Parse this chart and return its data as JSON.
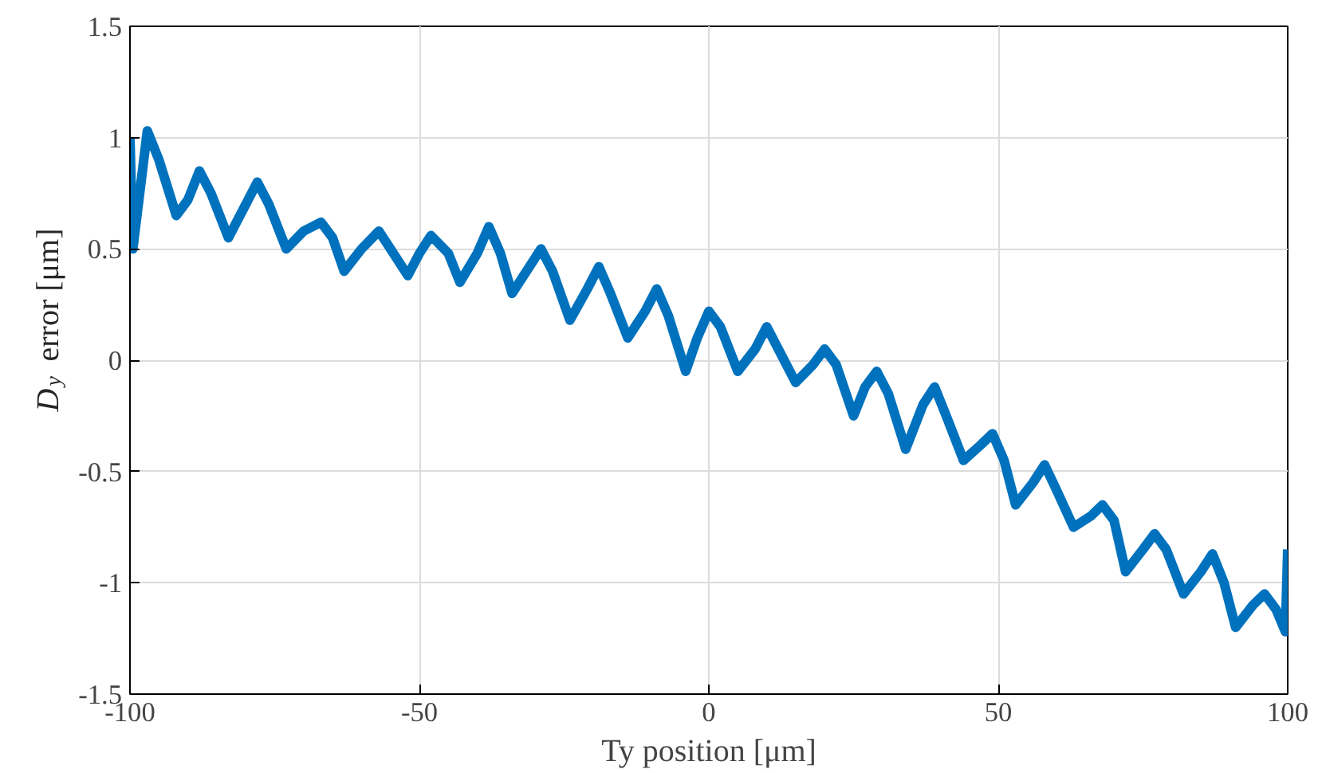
{
  "chart_data": {
    "type": "line",
    "xlabel": "Ty position [μm]",
    "ylabel": "D$_{y}$ error [μm]",
    "x": [
      -100,
      -99.5,
      -97,
      -95,
      -92,
      -90,
      -88,
      -86,
      -83,
      -80,
      -78,
      -76,
      -73,
      -70,
      -67,
      -65,
      -63,
      -60,
      -57,
      -55,
      -52,
      -50,
      -48,
      -45,
      -43,
      -40,
      -38,
      -36,
      -34,
      -31,
      -29,
      -27,
      -24,
      -21,
      -19,
      -17,
      -14,
      -11,
      -9,
      -7,
      -4,
      -2,
      0,
      2,
      5,
      8,
      10,
      12,
      15,
      18,
      20,
      22,
      25,
      27,
      29,
      31,
      34,
      37,
      39,
      41,
      44,
      47,
      49,
      51,
      53,
      56,
      58,
      60,
      63,
      66,
      68,
      70,
      72,
      75,
      77,
      79,
      82,
      85,
      87,
      89,
      91,
      94,
      96,
      98,
      99.6,
      100
    ],
    "series": [
      {
        "color": "#0072bd",
        "values": [
          1.0,
          0.5,
          1.03,
          0.9,
          0.65,
          0.72,
          0.85,
          0.75,
          0.55,
          0.7,
          0.8,
          0.7,
          0.5,
          0.58,
          0.62,
          0.55,
          0.4,
          0.5,
          0.58,
          0.5,
          0.38,
          0.48,
          0.56,
          0.48,
          0.35,
          0.48,
          0.6,
          0.48,
          0.3,
          0.42,
          0.5,
          0.4,
          0.18,
          0.32,
          0.42,
          0.3,
          0.1,
          0.22,
          0.32,
          0.2,
          -0.05,
          0.1,
          0.22,
          0.15,
          -0.05,
          0.05,
          0.15,
          0.05,
          -0.1,
          -0.02,
          0.05,
          -0.02,
          -0.25,
          -0.12,
          -0.05,
          -0.15,
          -0.4,
          -0.2,
          -0.12,
          -0.25,
          -0.45,
          -0.38,
          -0.33,
          -0.45,
          -0.65,
          -0.55,
          -0.47,
          -0.58,
          -0.75,
          -0.7,
          -0.65,
          -0.72,
          -0.95,
          -0.85,
          -0.78,
          -0.85,
          -1.05,
          -0.95,
          -0.87,
          -1.0,
          -1.2,
          -1.1,
          -1.05,
          -1.12,
          -1.22,
          -0.85
        ]
      }
    ],
    "xlim": [
      -100,
      100
    ],
    "ylim": [
      -1.5,
      1.5
    ],
    "xticks": [
      -100,
      -50,
      0,
      50,
      100
    ],
    "yticks": [
      -1.5,
      -1,
      -0.5,
      0,
      0.5,
      1,
      1.5
    ],
    "grid": true
  }
}
